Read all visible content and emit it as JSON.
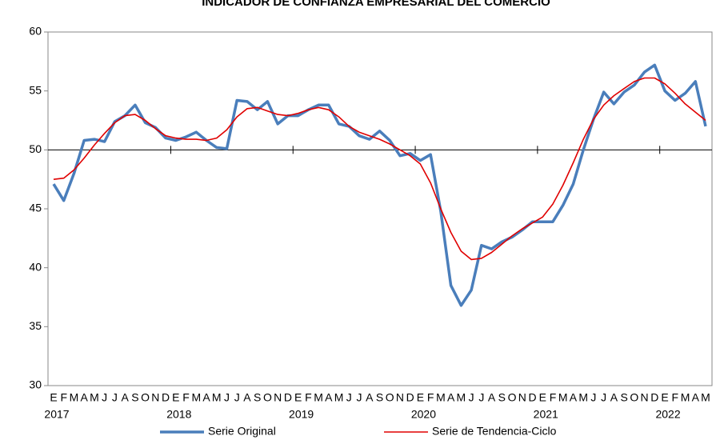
{
  "chart_data": {
    "type": "line",
    "title": "INDICADOR DE CONFIANZA EMPRESARIAL DEL COMERCIO",
    "categories": [
      "E",
      "F",
      "M",
      "A",
      "M",
      "J",
      "J",
      "A",
      "S",
      "O",
      "N",
      "D",
      "E",
      "F",
      "M",
      "A",
      "M",
      "J",
      "J",
      "A",
      "S",
      "O",
      "N",
      "D",
      "E",
      "F",
      "M",
      "A",
      "M",
      "J",
      "J",
      "A",
      "S",
      "O",
      "N",
      "D",
      "E",
      "F",
      "M",
      "A",
      "M",
      "J",
      "J",
      "A",
      "S",
      "O",
      "N",
      "D",
      "E",
      "F",
      "M",
      "A",
      "M",
      "J",
      "J",
      "A",
      "S",
      "O",
      "N",
      "D",
      "E",
      "F",
      "M",
      "A",
      "M"
    ],
    "years": [
      "2017",
      "2018",
      "2019",
      "2020",
      "2021",
      "2022"
    ],
    "series": [
      {
        "name": "Serie Original",
        "color": "#4a7ebb",
        "values": [
          47.1,
          45.7,
          48.0,
          50.8,
          50.9,
          50.7,
          52.4,
          52.9,
          53.8,
          52.3,
          51.9,
          51.0,
          50.8,
          51.1,
          51.5,
          50.8,
          50.2,
          50.1,
          54.2,
          54.1,
          53.4,
          54.1,
          52.2,
          52.9,
          52.9,
          53.4,
          53.8,
          53.8,
          52.2,
          52.0,
          51.2,
          50.9,
          51.6,
          50.8,
          49.5,
          49.7,
          49.1,
          49.6,
          44.8,
          38.5,
          36.8,
          38.1,
          41.9,
          41.6,
          42.2,
          42.6,
          43.2,
          43.9,
          43.9,
          43.9,
          45.3,
          47.1,
          50.0,
          52.6,
          54.9,
          53.9,
          54.9,
          55.5,
          56.6,
          57.2,
          55.0,
          54.2,
          54.8,
          55.8,
          52.0
        ]
      },
      {
        "name": "Serie de Tendencia-Ciclo",
        "color": "#e00000",
        "values": [
          47.5,
          47.6,
          48.3,
          49.3,
          50.4,
          51.4,
          52.3,
          52.9,
          53.0,
          52.5,
          51.8,
          51.2,
          51.0,
          50.9,
          50.9,
          50.8,
          51.0,
          51.7,
          52.8,
          53.5,
          53.6,
          53.3,
          53.0,
          52.9,
          53.1,
          53.4,
          53.6,
          53.4,
          52.8,
          52.0,
          51.5,
          51.2,
          50.9,
          50.5,
          50.0,
          49.5,
          48.8,
          47.2,
          45.0,
          43.0,
          41.4,
          40.7,
          40.8,
          41.3,
          42.0,
          42.7,
          43.3,
          43.8,
          44.3,
          45.4,
          47.0,
          48.9,
          50.9,
          52.6,
          53.8,
          54.6,
          55.2,
          55.8,
          56.1,
          56.1,
          55.6,
          54.8,
          53.9,
          53.2,
          52.5
        ]
      }
    ],
    "ylim": [
      30,
      60
    ],
    "yticks": [
      30,
      35,
      40,
      45,
      50,
      55,
      60
    ],
    "x_axis_at": 50,
    "legend": "bottom"
  }
}
